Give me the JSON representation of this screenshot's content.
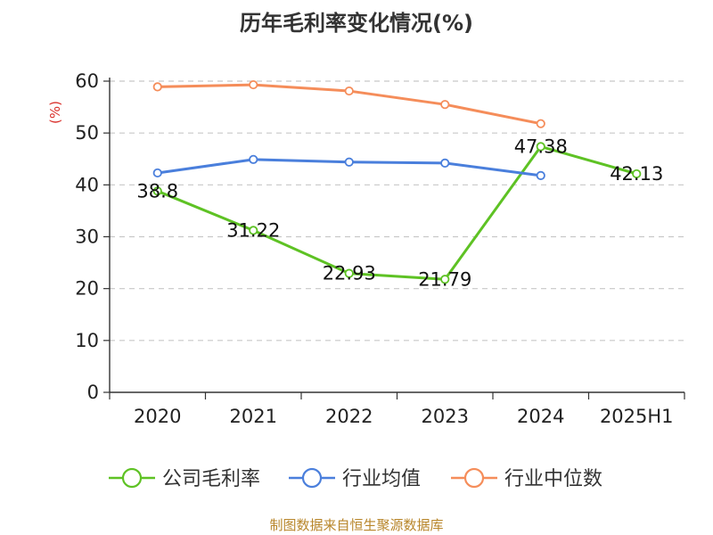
{
  "title": "历年毛利率变化情况(%)",
  "footer": "制图数据来自恒生聚源数据库",
  "chart_data": {
    "type": "line",
    "ylabel": "(%)",
    "ylim": [
      0,
      60
    ],
    "yticks": [
      "0",
      "10",
      "20",
      "30",
      "40",
      "50",
      "60"
    ],
    "categories": [
      "2020",
      "2021",
      "2022",
      "2023",
      "2024",
      "2025H1"
    ],
    "grid": true,
    "legend_position": "bottom",
    "series": [
      {
        "name": "公司毛利率",
        "color": "#5ec224",
        "show_labels": true,
        "values": [
          38.8,
          31.22,
          22.93,
          21.79,
          47.38,
          42.13
        ],
        "labels": [
          "38.8",
          "31.22",
          "22.93",
          "21.79",
          "47.38",
          "42.13"
        ]
      },
      {
        "name": "行业均值",
        "color": "#4a7fdc",
        "show_labels": false,
        "values": [
          42.3,
          44.9,
          44.4,
          44.2,
          41.8,
          null
        ]
      },
      {
        "name": "行业中位数",
        "color": "#f58d5a",
        "show_labels": false,
        "values": [
          58.9,
          59.3,
          58.1,
          55.5,
          51.8,
          null
        ]
      }
    ]
  }
}
